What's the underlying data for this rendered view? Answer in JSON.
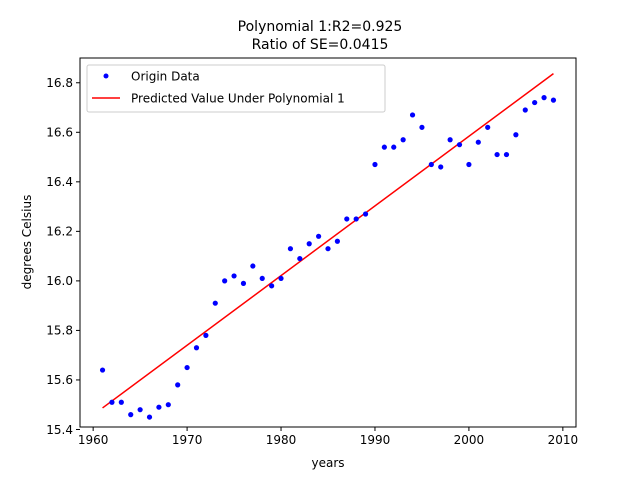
{
  "chart_data": {
    "type": "scatter",
    "title_line1": "Polynomial 1:R2=0.925",
    "title_line2": "Ratio of SE=0.0415",
    "xlabel": "years",
    "ylabel": "degrees Celsius",
    "xlim": [
      1958.6,
      2011.4
    ],
    "ylim": [
      15.41,
      16.9
    ],
    "xticks": [
      1960,
      1970,
      1980,
      1990,
      2000,
      2010
    ],
    "yticks": [
      15.4,
      15.6,
      15.8,
      16.0,
      16.2,
      16.4,
      16.6,
      16.8
    ],
    "xtick_labels": [
      "1960",
      "1970",
      "1980",
      "1990",
      "2000",
      "2010"
    ],
    "ytick_labels": [
      "15.4",
      "15.6",
      "15.8",
      "16.0",
      "16.2",
      "16.4",
      "16.6",
      "16.8"
    ],
    "grid": false,
    "legend_position": "upper-left",
    "series": [
      {
        "name": "Origin Data",
        "kind": "points",
        "color": "#0000ff",
        "x": [
          1961,
          1962,
          1963,
          1964,
          1965,
          1966,
          1967,
          1968,
          1969,
          1970,
          1971,
          1972,
          1973,
          1974,
          1975,
          1976,
          1977,
          1978,
          1979,
          1980,
          1981,
          1982,
          1983,
          1984,
          1985,
          1986,
          1987,
          1988,
          1989,
          1990,
          1991,
          1992,
          1993,
          1994,
          1995,
          1996,
          1997,
          1998,
          1999,
          2000,
          2001,
          2002,
          2003,
          2004,
          2005,
          2006,
          2007,
          2008,
          2009
        ],
        "y": [
          15.64,
          15.51,
          15.51,
          15.46,
          15.48,
          15.45,
          15.49,
          15.5,
          15.58,
          15.65,
          15.73,
          15.78,
          15.91,
          16.0,
          16.02,
          15.99,
          16.06,
          16.01,
          15.98,
          16.01,
          16.13,
          16.09,
          16.15,
          16.18,
          16.13,
          16.16,
          16.25,
          16.25,
          16.27,
          16.47,
          16.54,
          16.54,
          16.57,
          16.67,
          16.62,
          16.47,
          16.46,
          16.57,
          16.55,
          16.47,
          16.56,
          16.62,
          16.51,
          16.51,
          16.59,
          16.69,
          16.72,
          16.74,
          16.73
        ]
      },
      {
        "name": "Predicted Value Under Polynomial 1",
        "kind": "line",
        "color": "#ff0000",
        "x": [
          1961,
          2009
        ],
        "y": [
          15.487,
          16.837
        ]
      }
    ]
  }
}
